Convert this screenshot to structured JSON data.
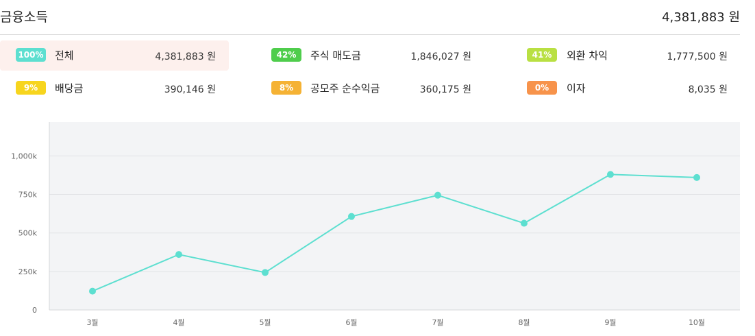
{
  "header": {
    "title": "금융소득",
    "total": "4,381,883 원"
  },
  "categories": [
    {
      "percent": "100%",
      "name": "전체",
      "amount": "4,381,883 원",
      "color": "#5ddfd0",
      "selected": true
    },
    {
      "percent": "42%",
      "name": "주식 매도금",
      "amount": "1,846,027 원",
      "color": "#4fcd4c",
      "selected": false
    },
    {
      "percent": "41%",
      "name": "외환 차익",
      "amount": "1,777,500 원",
      "color": "#b9e043",
      "selected": false
    },
    {
      "percent": "9%",
      "name": "배당금",
      "amount": "390,146 원",
      "color": "#f7d51e",
      "selected": false
    },
    {
      "percent": "8%",
      "name": "공모주 순수익금",
      "amount": "360,175 원",
      "color": "#f5b234",
      "selected": false
    },
    {
      "percent": "0%",
      "name": "이자",
      "amount": "8,035 원",
      "color": "#f7934b",
      "selected": false
    }
  ],
  "chart_data": {
    "type": "line",
    "categories": [
      "3월",
      "4월",
      "5월",
      "6월",
      "7월",
      "8월",
      "9월",
      "10월"
    ],
    "series": [
      {
        "values": [
          122000,
          360000,
          243000,
          607000,
          745000,
          563000,
          880000,
          860000
        ],
        "color": "#5ddfd0"
      }
    ],
    "yticks": [
      0,
      250000,
      500000,
      750000,
      1000000
    ],
    "ytick_labels": [
      "0",
      "250k",
      "500k",
      "750k",
      "1,000k"
    ],
    "ylim": [
      0,
      1220000
    ],
    "grid": true
  }
}
